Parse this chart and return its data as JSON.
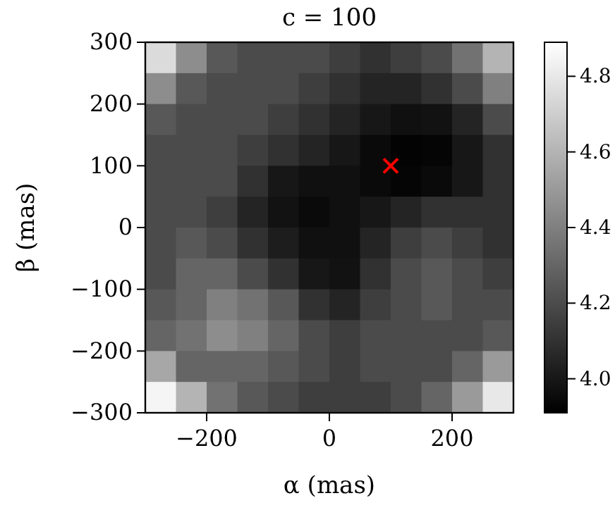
{
  "chart_data": {
    "type": "heatmap",
    "title": "c = 100",
    "xlabel": "α (mas)",
    "ylabel": "β (mas)",
    "xlim": [
      -300,
      300
    ],
    "xticks": [
      -200,
      0,
      200
    ],
    "ylim": [
      -300,
      300
    ],
    "yticks": [
      -300,
      -200,
      -100,
      0,
      100,
      200,
      300
    ],
    "clim": [
      3.91,
      4.89
    ],
    "cticks": [
      {
        "value": 4,
        "label": "4.0"
      },
      4.2,
      4.4,
      4.6,
      4.8
    ],
    "cells": [
      [
        4.75,
        4.45,
        4.25,
        4.2,
        4.2,
        4.2,
        4.15,
        4.1,
        4.15,
        4.2,
        4.35,
        4.6
      ],
      [
        4.45,
        4.25,
        4.2,
        4.2,
        4.2,
        4.15,
        4.1,
        4.05,
        4.05,
        4.1,
        4.2,
        4.4
      ],
      [
        4.25,
        4.2,
        4.2,
        4.2,
        4.15,
        4.1,
        4.05,
        4.0,
        3.97,
        3.98,
        4.05,
        4.2
      ],
      [
        4.2,
        4.2,
        4.2,
        4.15,
        4.1,
        4.05,
        4.0,
        3.95,
        3.92,
        3.93,
        4.0,
        4.1
      ],
      [
        4.2,
        4.2,
        4.2,
        4.1,
        4.0,
        3.97,
        3.97,
        3.95,
        3.93,
        3.95,
        4.0,
        4.1
      ],
      [
        4.2,
        4.2,
        4.15,
        4.05,
        3.98,
        3.95,
        3.97,
        4.0,
        4.05,
        4.1,
        4.1,
        4.1
      ],
      [
        4.2,
        4.25,
        4.2,
        4.1,
        4.02,
        3.97,
        3.97,
        4.05,
        4.15,
        4.2,
        4.15,
        4.1
      ],
      [
        4.2,
        4.3,
        4.3,
        4.2,
        4.1,
        4.0,
        3.98,
        4.1,
        4.2,
        4.25,
        4.2,
        4.15
      ],
      [
        4.25,
        4.3,
        4.4,
        4.35,
        4.25,
        4.1,
        4.05,
        4.15,
        4.2,
        4.25,
        4.2,
        4.2
      ],
      [
        4.3,
        4.35,
        4.45,
        4.4,
        4.3,
        4.2,
        4.15,
        4.2,
        4.2,
        4.2,
        4.2,
        4.25
      ],
      [
        4.55,
        4.3,
        4.3,
        4.3,
        4.25,
        4.2,
        4.15,
        4.2,
        4.2,
        4.2,
        4.3,
        4.5
      ],
      [
        4.85,
        4.6,
        4.35,
        4.25,
        4.2,
        4.15,
        4.15,
        4.15,
        4.2,
        4.3,
        4.5,
        4.8
      ]
    ],
    "series": [
      {
        "type": "scatter",
        "x": [
          100
        ],
        "values": [
          100
        ],
        "color": "#ff0000",
        "marker": "cross"
      }
    ]
  }
}
